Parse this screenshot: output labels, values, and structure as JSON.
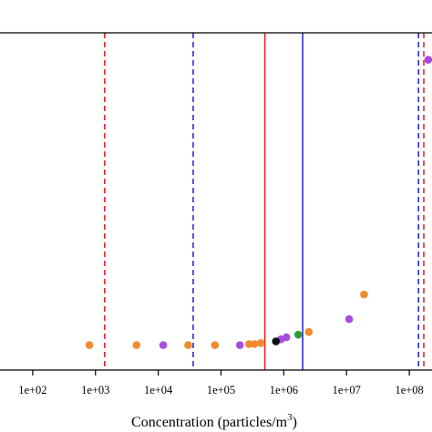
{
  "chart_data": {
    "type": "scatter",
    "title": "",
    "xlabel_main": "Concentration (particles/m",
    "xlabel_sup": "3",
    "xlabel_close": ")",
    "xscale": "log",
    "xlim": [
      10,
      1000000000
    ],
    "ylim": [
      0,
      1
    ],
    "x_ticks": [
      100,
      1000,
      10000,
      100000,
      1000000,
      10000000,
      100000000
    ],
    "x_tick_labels": [
      "1e+02",
      "1e+03",
      "1e+04",
      "1e+05",
      "1e+06",
      "1e+07",
      "1e+08"
    ],
    "vertical_lines": [
      {
        "x": 1400,
        "color": "#e8262b",
        "style": "dashed"
      },
      {
        "x": 36000,
        "color": "#2b2fd6",
        "style": "dashed"
      },
      {
        "x": 500000,
        "color": "#e8262b",
        "style": "solid"
      },
      {
        "x": 2000000,
        "color": "#2b2fd6",
        "style": "solid"
      },
      {
        "x": 140000000,
        "color": "#2b2fd6",
        "style": "dashed"
      },
      {
        "x": 170000000,
        "color": "#e8262b",
        "style": "dashed"
      }
    ],
    "series": [
      {
        "color": "#f28a2e",
        "points": [
          {
            "x": 800,
            "y": 0.074
          },
          {
            "x": 4500,
            "y": 0.074
          },
          {
            "x": 30000,
            "y": 0.074
          },
          {
            "x": 80000,
            "y": 0.074
          },
          {
            "x": 280000,
            "y": 0.077
          },
          {
            "x": 340000,
            "y": 0.077
          },
          {
            "x": 430000,
            "y": 0.08
          },
          {
            "x": 2500000,
            "y": 0.113
          },
          {
            "x": 19000000,
            "y": 0.224
          }
        ]
      },
      {
        "color": "#a64de0",
        "points": [
          {
            "x": 12000,
            "y": 0.074
          },
          {
            "x": 200000,
            "y": 0.074
          },
          {
            "x": 900000,
            "y": 0.091
          },
          {
            "x": 1100000,
            "y": 0.097
          },
          {
            "x": 11000000,
            "y": 0.151
          },
          {
            "x": 200000000,
            "y": 0.92
          }
        ]
      },
      {
        "color": "#2f9e2f",
        "points": [
          {
            "x": 1700000,
            "y": 0.105
          }
        ]
      },
      {
        "color": "#111111",
        "points": [
          {
            "x": 750000,
            "y": 0.085
          }
        ]
      }
    ]
  }
}
